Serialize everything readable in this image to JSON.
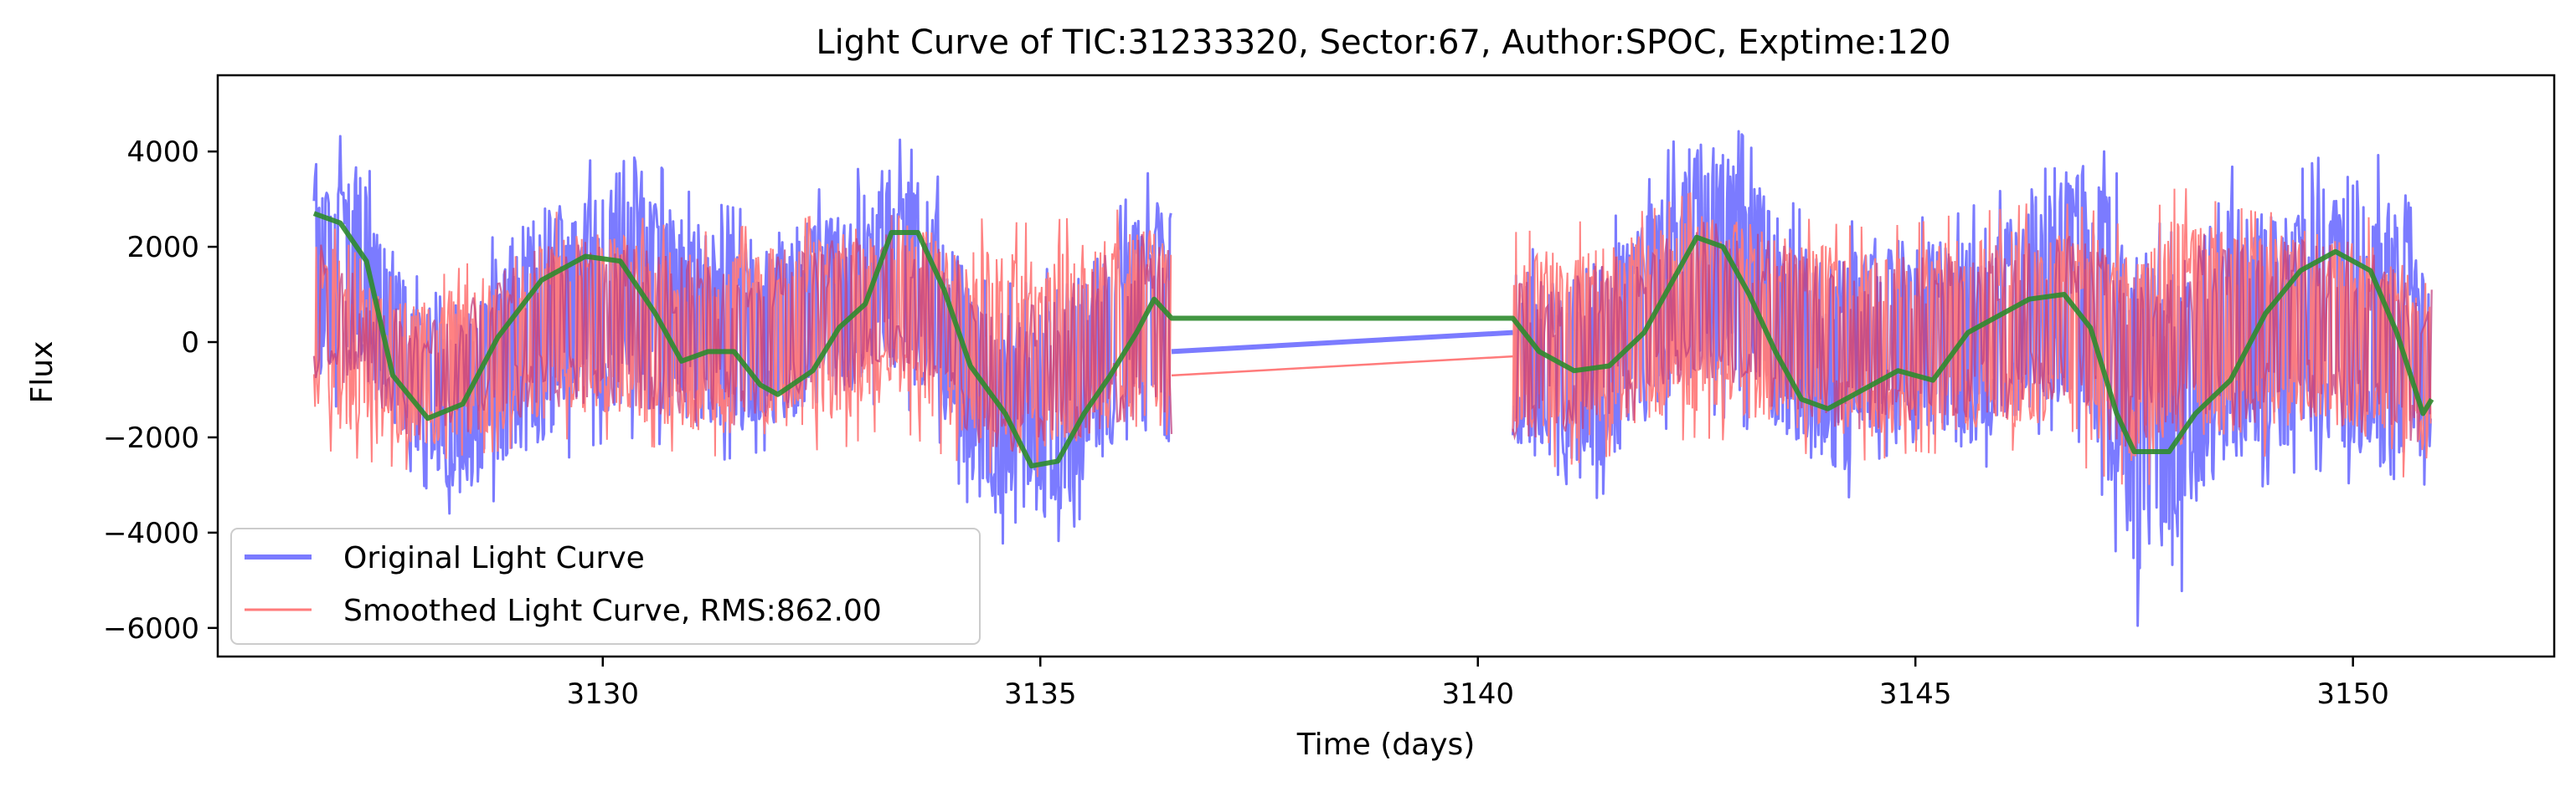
{
  "chart_data": {
    "type": "line",
    "title": "Light Curve of TIC:31233320, Sector:67, Author:SPOC, Exptime:120",
    "xlabel": "Time (days)",
    "ylabel": "Flux",
    "xlim": [
      3125.6,
      3152.3
    ],
    "ylim": [
      -6600,
      5600
    ],
    "xticks": [
      3130,
      3135,
      3140,
      3145,
      3150
    ],
    "xtick_labels": [
      "3130",
      "3135",
      "3140",
      "3145",
      "3150"
    ],
    "yticks": [
      -6000,
      -4000,
      -2000,
      0,
      2000,
      4000
    ],
    "ytick_labels": [
      "−6000",
      "−4000",
      "−2000",
      "0",
      "2000",
      "4000"
    ],
    "grid": false,
    "legend_position": "lower-left",
    "colors": {
      "original": "#7b7bff",
      "smoothed": "#ff7b7b",
      "trend": "#2e8b2e",
      "overlap": "#c0407f"
    },
    "series": [
      {
        "name": "Original Light Curve",
        "data_gap": [
          3136.5,
          3140.4
        ],
        "envelope": [
          [
            3126.7,
            -1500,
            4500
          ],
          [
            3127.2,
            -1200,
            4200
          ],
          [
            3127.8,
            -2700,
            1500
          ],
          [
            3128.3,
            -3700,
            700
          ],
          [
            3128.8,
            -3300,
            2400
          ],
          [
            3129.3,
            -2800,
            3500
          ],
          [
            3129.8,
            -2200,
            3700
          ],
          [
            3130.3,
            -2000,
            4700
          ],
          [
            3130.8,
            -2200,
            3300
          ],
          [
            3131.3,
            -2500,
            2900
          ],
          [
            3131.8,
            -2300,
            2700
          ],
          [
            3132.3,
            -2000,
            3100
          ],
          [
            3132.8,
            -1600,
            3400
          ],
          [
            3133.3,
            -1100,
            4400
          ],
          [
            3133.8,
            -1900,
            3600
          ],
          [
            3134.3,
            -3900,
            1300
          ],
          [
            3134.8,
            -4500,
            1200
          ],
          [
            3135.3,
            -4100,
            1800
          ],
          [
            3135.8,
            -2800,
            2600
          ],
          [
            3136.3,
            -2400,
            3700
          ],
          [
            3136.5,
            -2800,
            3800
          ],
          [
            3140.5,
            -2600,
            2000
          ],
          [
            3141.0,
            -3700,
            1800
          ],
          [
            3141.5,
            -3100,
            2500
          ],
          [
            3142.0,
            -2000,
            3500
          ],
          [
            3142.5,
            -1400,
            5000
          ],
          [
            3143.0,
            -1700,
            4400
          ],
          [
            3143.5,
            -2500,
            3100
          ],
          [
            3144.0,
            -3400,
            2200
          ],
          [
            3144.5,
            -3100,
            2800
          ],
          [
            3145.0,
            -2700,
            2600
          ],
          [
            3145.5,
            -2800,
            2700
          ],
          [
            3146.0,
            -2500,
            3200
          ],
          [
            3146.5,
            -1800,
            4300
          ],
          [
            3147.0,
            -2200,
            4500
          ],
          [
            3147.5,
            -6000,
            2900
          ],
          [
            3148.0,
            -5400,
            2200
          ],
          [
            3148.5,
            -3400,
            3800
          ],
          [
            3149.0,
            -3000,
            3300
          ],
          [
            3149.5,
            -2600,
            3700
          ],
          [
            3150.0,
            -3000,
            4500
          ],
          [
            3150.5,
            -3700,
            3500
          ],
          [
            3150.9,
            -2800,
            1800
          ]
        ]
      },
      {
        "name": "Smoothed Light Curve, RMS:862.00",
        "data_gap": [
          3136.5,
          3140.4
        ],
        "envelope": [
          [
            3126.7,
            -2200,
            2900
          ],
          [
            3127.3,
            -2500,
            1600
          ],
          [
            3127.8,
            -2700,
            1200
          ],
          [
            3128.3,
            -2400,
            1500
          ],
          [
            3128.8,
            -2300,
            2000
          ],
          [
            3129.3,
            -2100,
            2700
          ],
          [
            3129.8,
            -2000,
            2800
          ],
          [
            3130.3,
            -2100,
            2700
          ],
          [
            3130.8,
            -2300,
            2400
          ],
          [
            3131.3,
            -2400,
            2300
          ],
          [
            3131.8,
            -2500,
            2500
          ],
          [
            3132.3,
            -2300,
            2600
          ],
          [
            3132.8,
            -2200,
            2800
          ],
          [
            3133.3,
            -1700,
            3300
          ],
          [
            3133.8,
            -2300,
            2800
          ],
          [
            3134.3,
            -2700,
            2600
          ],
          [
            3134.8,
            -2900,
            2500
          ],
          [
            3135.3,
            -2700,
            2600
          ],
          [
            3135.8,
            -2400,
            2700
          ],
          [
            3136.3,
            -2300,
            3200
          ],
          [
            3136.5,
            -3000,
            3000
          ],
          [
            3140.5,
            -2700,
            2300
          ],
          [
            3141.0,
            -2600,
            2500
          ],
          [
            3141.5,
            -2400,
            2600
          ],
          [
            3142.0,
            -2200,
            2800
          ],
          [
            3142.5,
            -2000,
            3200
          ],
          [
            3143.0,
            -2100,
            3100
          ],
          [
            3143.5,
            -2300,
            2700
          ],
          [
            3144.0,
            -2400,
            2500
          ],
          [
            3144.5,
            -2500,
            2400
          ],
          [
            3145.0,
            -2300,
            2500
          ],
          [
            3145.5,
            -2400,
            2700
          ],
          [
            3146.0,
            -2300,
            2800
          ],
          [
            3146.5,
            -2200,
            3000
          ],
          [
            3147.0,
            -2700,
            2800
          ],
          [
            3147.5,
            -3100,
            2300
          ],
          [
            3148.0,
            -2800,
            3300
          ],
          [
            3148.5,
            -2600,
            2900
          ],
          [
            3149.0,
            -2400,
            2700
          ],
          [
            3149.5,
            -2300,
            2900
          ],
          [
            3150.0,
            -2500,
            2800
          ],
          [
            3150.5,
            -2800,
            2300
          ],
          [
            3150.9,
            -3000,
            2000
          ]
        ]
      },
      {
        "trend": [
          [
            3126.7,
            2700
          ],
          [
            3127.0,
            2500
          ],
          [
            3127.3,
            1700
          ],
          [
            3127.6,
            -700
          ],
          [
            3128.0,
            -1600
          ],
          [
            3128.4,
            -1300
          ],
          [
            3128.8,
            100
          ],
          [
            3129.3,
            1300
          ],
          [
            3129.8,
            1800
          ],
          [
            3130.2,
            1700
          ],
          [
            3130.6,
            600
          ],
          [
            3130.9,
            -400
          ],
          [
            3131.2,
            -200
          ],
          [
            3131.5,
            -200
          ],
          [
            3131.8,
            -900
          ],
          [
            3132.0,
            -1100
          ],
          [
            3132.4,
            -600
          ],
          [
            3132.7,
            300
          ],
          [
            3133.0,
            800
          ],
          [
            3133.3,
            2300
          ],
          [
            3133.6,
            2300
          ],
          [
            3133.9,
            1100
          ],
          [
            3134.2,
            -500
          ],
          [
            3134.6,
            -1500
          ],
          [
            3134.9,
            -2600
          ],
          [
            3135.2,
            -2500
          ],
          [
            3135.5,
            -1500
          ],
          [
            3135.8,
            -700
          ],
          [
            3136.1,
            200
          ],
          [
            3136.3,
            900
          ],
          [
            3136.5,
            500
          ],
          [
            3140.4,
            500
          ],
          [
            3140.7,
            -200
          ],
          [
            3141.1,
            -600
          ],
          [
            3141.5,
            -500
          ],
          [
            3141.9,
            200
          ],
          [
            3142.2,
            1200
          ],
          [
            3142.5,
            2200
          ],
          [
            3142.8,
            2000
          ],
          [
            3143.1,
            1000
          ],
          [
            3143.4,
            -200
          ],
          [
            3143.7,
            -1200
          ],
          [
            3144.0,
            -1400
          ],
          [
            3144.4,
            -1000
          ],
          [
            3144.8,
            -600
          ],
          [
            3145.2,
            -800
          ],
          [
            3145.6,
            200
          ],
          [
            3145.9,
            500
          ],
          [
            3146.3,
            900
          ],
          [
            3146.7,
            1000
          ],
          [
            3147.0,
            300
          ],
          [
            3147.3,
            -1500
          ],
          [
            3147.5,
            -2300
          ],
          [
            3147.9,
            -2300
          ],
          [
            3148.2,
            -1500
          ],
          [
            3148.6,
            -800
          ],
          [
            3149.0,
            600
          ],
          [
            3149.4,
            1500
          ],
          [
            3149.8,
            1900
          ],
          [
            3150.2,
            1500
          ],
          [
            3150.5,
            200
          ],
          [
            3150.8,
            -1500
          ],
          [
            3150.9,
            -1200
          ]
        ]
      }
    ]
  }
}
